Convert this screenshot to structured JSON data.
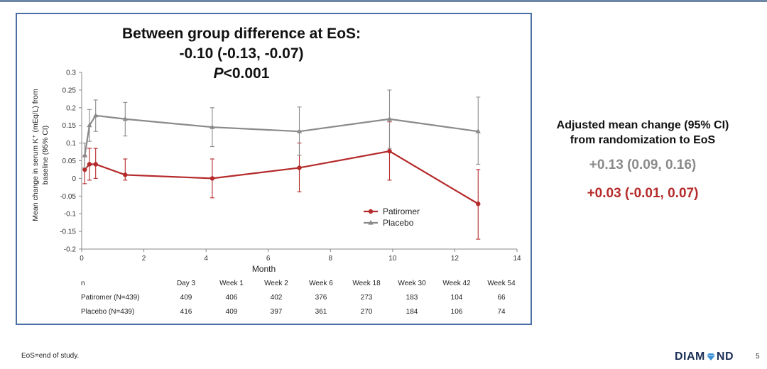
{
  "slide": {
    "footnote": "EoS=end of study.",
    "logo_text": "DIAM ND",
    "logo_left": "DIAM",
    "logo_right": "ND",
    "page_number": "5"
  },
  "titles": {
    "line1": "Between group difference at EoS:",
    "line2": "-0.10 (-0.13, -0.07)",
    "line3_p": "P",
    "line3_rest": "<0.001"
  },
  "right_panel": {
    "heading_line1": "Adjusted mean change (95% CI)",
    "heading_line2": "from randomization to EoS",
    "placebo_value": "+0.13 (0.09, 0.16)",
    "patiromer_value": "+0.03 (-0.01, 0.07)"
  },
  "colors": {
    "patiromer": "#b52a2a",
    "placebo": "#8a8a8a",
    "frame": "#4b6fa5",
    "logo_gem": "#3a8fd6"
  },
  "chart_data": {
    "type": "line",
    "title": "",
    "xlabel": "Month",
    "ylabel": "Mean change in serum K⁺ (mEq/L) from baseline (95% CI)",
    "ylabel_line1": "Mean change in serum K⁺ (mEq/L) from",
    "ylabel_line2": "baseline (95% CI)",
    "xlim": [
      0,
      14
    ],
    "ylim": [
      -0.2,
      0.3
    ],
    "xticks": [
      "0",
      "2",
      "4",
      "6",
      "8",
      "10",
      "12",
      "14"
    ],
    "yticks": [
      "0.3",
      "0.25",
      "0.2",
      "0.15",
      "0.1",
      "0.05",
      "0",
      "-0.05",
      "-0.1",
      "-0.15",
      "-0.2"
    ],
    "legend_position": "center-right",
    "series": [
      {
        "name": "Patiromer",
        "color": "#b52a2a",
        "marker": "circle",
        "x": [
          0.1,
          0.25,
          0.45,
          1.4,
          4.2,
          7.0,
          9.9,
          12.75
        ],
        "y": [
          0.025,
          0.04,
          0.04,
          0.01,
          0.0,
          0.03,
          0.077,
          -0.072
        ],
        "ci_low": [
          -0.015,
          -0.005,
          0.0,
          -0.005,
          -0.055,
          -0.038,
          -0.005,
          -0.172
        ],
        "ci_high": [
          0.065,
          0.085,
          0.085,
          0.055,
          0.055,
          0.1,
          0.16,
          0.025
        ]
      },
      {
        "name": "Placebo",
        "color": "#8a8a8a",
        "marker": "triangle",
        "x": [
          0.1,
          0.25,
          0.45,
          1.4,
          4.2,
          7.0,
          9.9,
          12.75
        ],
        "y": [
          0.065,
          0.15,
          0.178,
          0.168,
          0.145,
          0.133,
          0.168,
          0.133
        ],
        "ci_low": [
          0.03,
          0.105,
          0.133,
          0.12,
          0.09,
          0.065,
          0.085,
          0.04
        ],
        "ci_high": [
          0.1,
          0.195,
          0.222,
          0.215,
          0.2,
          0.202,
          0.25,
          0.23
        ]
      }
    ],
    "n_table": {
      "header": "n",
      "columns": [
        "Day 3",
        "Week 1",
        "Week 2",
        "Week 6",
        "Week 18",
        "Week 30",
        "Week 42",
        "Week 54"
      ],
      "rows": [
        {
          "label": "Patiromer (N=439)",
          "values": [
            "409",
            "406",
            "402",
            "376",
            "273",
            "183",
            "104",
            "66"
          ]
        },
        {
          "label": "Placebo (N=439)",
          "values": [
            "416",
            "409",
            "397",
            "361",
            "270",
            "184",
            "106",
            "74"
          ]
        }
      ]
    }
  }
}
